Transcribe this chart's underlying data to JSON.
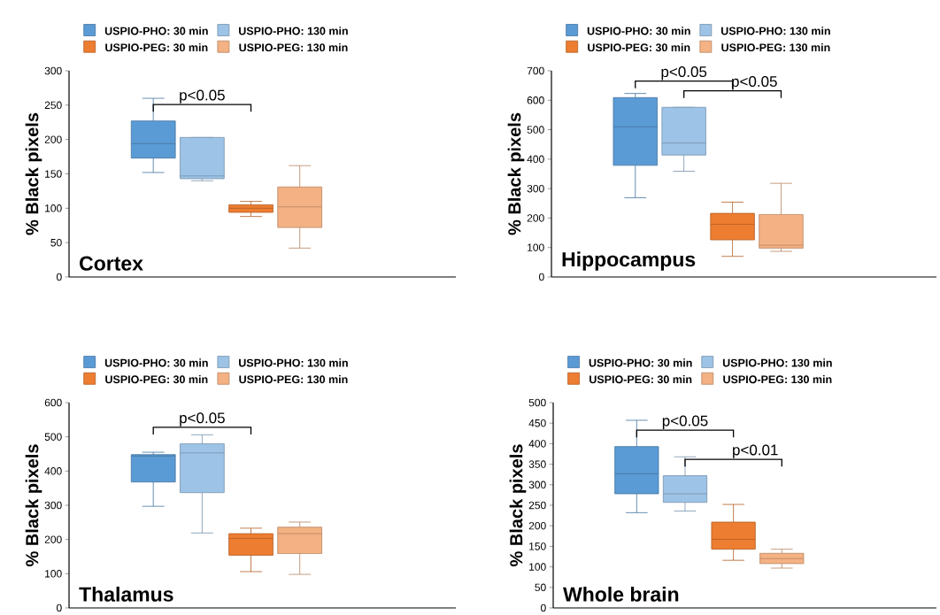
{
  "chart_data": [
    {
      "type": "box",
      "title": "Cortex",
      "ylabel": "% Black pixels",
      "categories": [
        null
      ],
      "legend": "top",
      "ylim": [
        0,
        300
      ],
      "yticks": [
        0,
        50,
        100,
        150,
        200,
        250,
        300
      ],
      "series": [
        {
          "name": "USPIO-PHO: 30 min",
          "color": "#5b9bd5",
          "boxes": [
            {
              "low": 152,
              "q1": 173,
              "median": 194,
              "q3": 227,
              "high": 260
            }
          ]
        },
        {
          "name": "USPIO-PHO: 130 min",
          "color": "#9dc3e6",
          "boxes": [
            {
              "low": 140,
              "q1": 143,
              "median": 147,
              "q3": 203,
              "high": 203
            }
          ]
        },
        {
          "name": "USPIO-PEG: 30 min",
          "color": "#ed7d31",
          "boxes": [
            {
              "low": 88,
              "q1": 94,
              "median": 100,
              "q3": 105,
              "high": 110
            }
          ]
        },
        {
          "name": "USPIO-PEG: 130 min",
          "color": "#f4b183",
          "boxes": [
            {
              "low": 42,
              "q1": 72,
              "median": 102,
              "q3": 131,
              "high": 162
            }
          ]
        }
      ],
      "annotations": [
        "p<0.05"
      ]
    },
    {
      "type": "box",
      "title": "Hippocampus",
      "ylabel": "% Black pixels",
      "categories": [
        null
      ],
      "legend": "top",
      "ylim": [
        0,
        700
      ],
      "yticks": [
        0,
        100,
        200,
        300,
        400,
        500,
        600,
        700
      ],
      "series": [
        {
          "name": "USPIO-PHO: 30 min",
          "color": "#5b9bd5",
          "boxes": [
            {
              "low": 269,
              "q1": 379,
              "median": 510,
              "q3": 609,
              "high": 623
            }
          ]
        },
        {
          "name": "USPIO-PHO: 130 min",
          "color": "#9dc3e6",
          "boxes": [
            {
              "low": 359,
              "q1": 414,
              "median": 455,
              "q3": 576,
              "high": 576
            }
          ]
        },
        {
          "name": "USPIO-PEG: 30 min",
          "color": "#ed7d31",
          "boxes": [
            {
              "low": 70,
              "q1": 126,
              "median": 179,
              "q3": 216,
              "high": 254
            }
          ]
        },
        {
          "name": "USPIO-PEG: 130 min",
          "color": "#f4b183",
          "boxes": [
            {
              "low": 87,
              "q1": 98,
              "median": 108,
              "q3": 212,
              "high": 318
            }
          ]
        }
      ],
      "annotations": [
        "p<0.05",
        "p<0.05"
      ]
    },
    {
      "type": "box",
      "title": "Thalamus",
      "ylabel": "% Black pixels",
      "categories": [
        null
      ],
      "legend": "top",
      "ylim": [
        0,
        600
      ],
      "yticks": [
        0,
        100,
        200,
        300,
        400,
        500,
        600
      ],
      "series": [
        {
          "name": "USPIO-PHO: 30 min",
          "color": "#5b9bd5",
          "boxes": [
            {
              "low": 297,
              "q1": 368,
              "median": 444,
              "q3": 448,
              "high": 455
            }
          ]
        },
        {
          "name": "USPIO-PHO: 130 min",
          "color": "#9dc3e6",
          "boxes": [
            {
              "low": 219,
              "q1": 337,
              "median": 453,
              "q3": 480,
              "high": 506
            }
          ]
        },
        {
          "name": "USPIO-PEG: 30 min",
          "color": "#ed7d31",
          "boxes": [
            {
              "low": 106,
              "q1": 154,
              "median": 203,
              "q3": 217,
              "high": 233
            }
          ]
        },
        {
          "name": "USPIO-PEG: 130 min",
          "color": "#f4b183",
          "boxes": [
            {
              "low": 98,
              "q1": 159,
              "median": 217,
              "q3": 236,
              "high": 251
            }
          ]
        }
      ],
      "annotations": [
        "p<0.05"
      ]
    },
    {
      "type": "box",
      "title": "Whole brain",
      "ylabel": "% Black pixels",
      "categories": [
        null
      ],
      "legend": "top",
      "ylim": [
        0,
        500
      ],
      "yticks": [
        0,
        50,
        100,
        150,
        200,
        250,
        300,
        350,
        400,
        450,
        500
      ],
      "series": [
        {
          "name": "USPIO-PHO: 30 min",
          "color": "#5b9bd5",
          "boxes": [
            {
              "low": 232,
              "q1": 278,
              "median": 327,
              "q3": 393,
              "high": 457
            }
          ]
        },
        {
          "name": "USPIO-PHO: 130 min",
          "color": "#9dc3e6",
          "boxes": [
            {
              "low": 236,
              "q1": 257,
              "median": 278,
              "q3": 322,
              "high": 368
            }
          ]
        },
        {
          "name": "USPIO-PEG: 30 min",
          "color": "#ed7d31",
          "boxes": [
            {
              "low": 116,
              "q1": 143,
              "median": 167,
              "q3": 209,
              "high": 252
            }
          ]
        },
        {
          "name": "USPIO-PEG: 130 min",
          "color": "#f4b183",
          "boxes": [
            {
              "low": 97,
              "q1": 108,
              "median": 120,
              "q3": 133,
              "high": 143
            }
          ]
        }
      ],
      "annotations": [
        "p<0.05",
        "p<0.01"
      ]
    }
  ]
}
